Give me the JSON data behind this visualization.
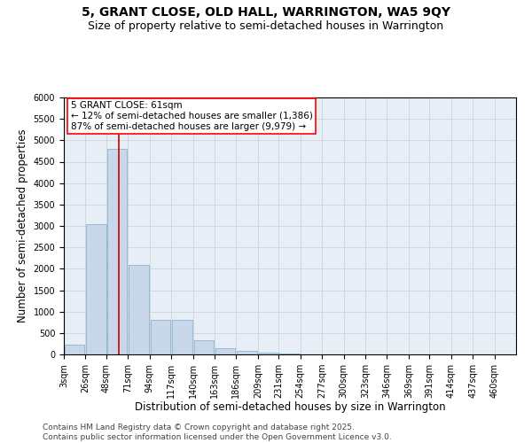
{
  "title": "5, GRANT CLOSE, OLD HALL, WARRINGTON, WA5 9QY",
  "subtitle": "Size of property relative to semi-detached houses in Warrington",
  "xlabel": "Distribution of semi-detached houses by size in Warrington",
  "ylabel": "Number of semi-detached properties",
  "annotation_line1": "5 GRANT CLOSE: 61sqm",
  "annotation_line2": "← 12% of semi-detached houses are smaller (1,386)",
  "annotation_line3": "87% of semi-detached houses are larger (9,979) →",
  "bin_labels": [
    "3sqm",
    "26sqm",
    "48sqm",
    "71sqm",
    "94sqm",
    "117sqm",
    "140sqm",
    "163sqm",
    "186sqm",
    "209sqm",
    "231sqm",
    "254sqm",
    "277sqm",
    "300sqm",
    "323sqm",
    "346sqm",
    "369sqm",
    "391sqm",
    "414sqm",
    "437sqm",
    "460sqm"
  ],
  "bin_edges": [
    3,
    26,
    48,
    71,
    94,
    117,
    140,
    163,
    186,
    209,
    231,
    254,
    277,
    300,
    323,
    346,
    369,
    391,
    414,
    437,
    460
  ],
  "bar_values": [
    230,
    3050,
    4800,
    2100,
    800,
    800,
    330,
    150,
    90,
    40,
    15,
    8,
    3,
    2,
    1,
    0,
    0,
    0,
    0,
    0
  ],
  "bar_color": "#c8d8ea",
  "bar_edge_color": "#7aaac8",
  "vline_color": "#cc0000",
  "vline_x": 61,
  "ylim": [
    0,
    6000
  ],
  "yticks": [
    0,
    500,
    1000,
    1500,
    2000,
    2500,
    3000,
    3500,
    4000,
    4500,
    5000,
    5500,
    6000
  ],
  "background_color": "#ffffff",
  "plot_bg_color": "#e8eef5",
  "grid_color": "#c8d0d8",
  "footer_line1": "Contains HM Land Registry data © Crown copyright and database right 2025.",
  "footer_line2": "Contains public sector information licensed under the Open Government Licence v3.0.",
  "title_fontsize": 10,
  "subtitle_fontsize": 9,
  "axis_label_fontsize": 8.5,
  "tick_fontsize": 7,
  "annotation_fontsize": 7.5,
  "footer_fontsize": 6.5
}
